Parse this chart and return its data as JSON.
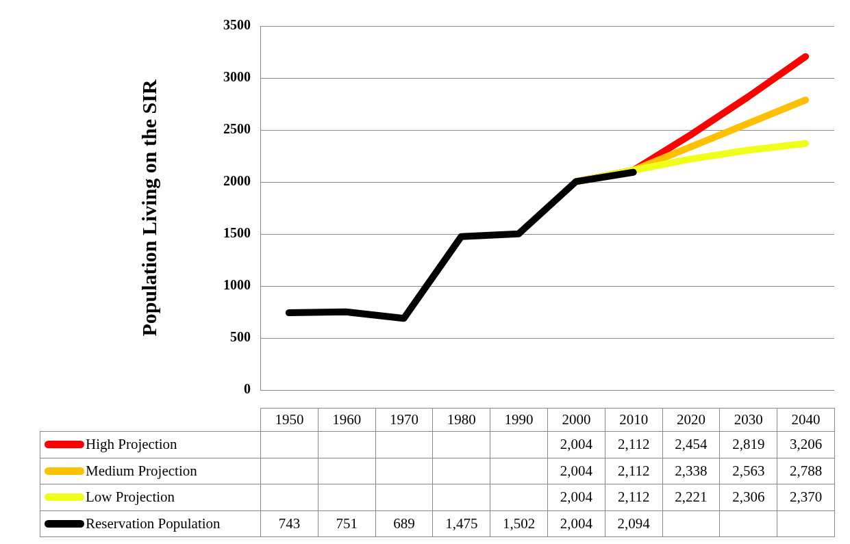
{
  "chart_data": {
    "type": "line",
    "ylabel": "Population Living on the SIR",
    "categories": [
      "1950",
      "1960",
      "1970",
      "1980",
      "1990",
      "2000",
      "2010",
      "2020",
      "2030",
      "2040"
    ],
    "ylim": [
      0,
      3500
    ],
    "yticks": [
      0,
      500,
      1000,
      1500,
      2000,
      2500,
      3000,
      3500
    ],
    "grid": "y",
    "legend": "bottom",
    "marker": "none",
    "line_style": "solid",
    "data_labels": true,
    "series": [
      {
        "name": "High Projection",
        "color": "#ff0000",
        "values": [
          null,
          null,
          null,
          null,
          null,
          2004,
          2112,
          2454,
          2819,
          3206
        ],
        "value_labels": [
          null,
          null,
          null,
          null,
          null,
          "2,004",
          "2,112",
          "2,454",
          "2,819",
          "3,206"
        ]
      },
      {
        "name": "Medium Projection",
        "color": "#ffc000",
        "values": [
          null,
          null,
          null,
          null,
          null,
          2004,
          2112,
          2338,
          2563,
          2788
        ],
        "value_labels": [
          null,
          null,
          null,
          null,
          null,
          "2,004",
          "2,112",
          "2,338",
          "2,563",
          "2,788"
        ]
      },
      {
        "name": "Low Projection",
        "color": "#f0ff1a",
        "values": [
          null,
          null,
          null,
          null,
          null,
          2004,
          2112,
          2221,
          2306,
          2370
        ],
        "value_labels": [
          null,
          null,
          null,
          null,
          null,
          "2,004",
          "2,112",
          "2,221",
          "2,306",
          "2,370"
        ]
      },
      {
        "name": "Reservation Population",
        "color": "#000000",
        "values": [
          743,
          751,
          689,
          1475,
          1502,
          2004,
          2094,
          null,
          null,
          null
        ],
        "value_labels": [
          "743",
          "751",
          "689",
          "1,475",
          "1,502",
          "2,004",
          "2,094",
          null,
          null,
          null
        ]
      }
    ]
  }
}
